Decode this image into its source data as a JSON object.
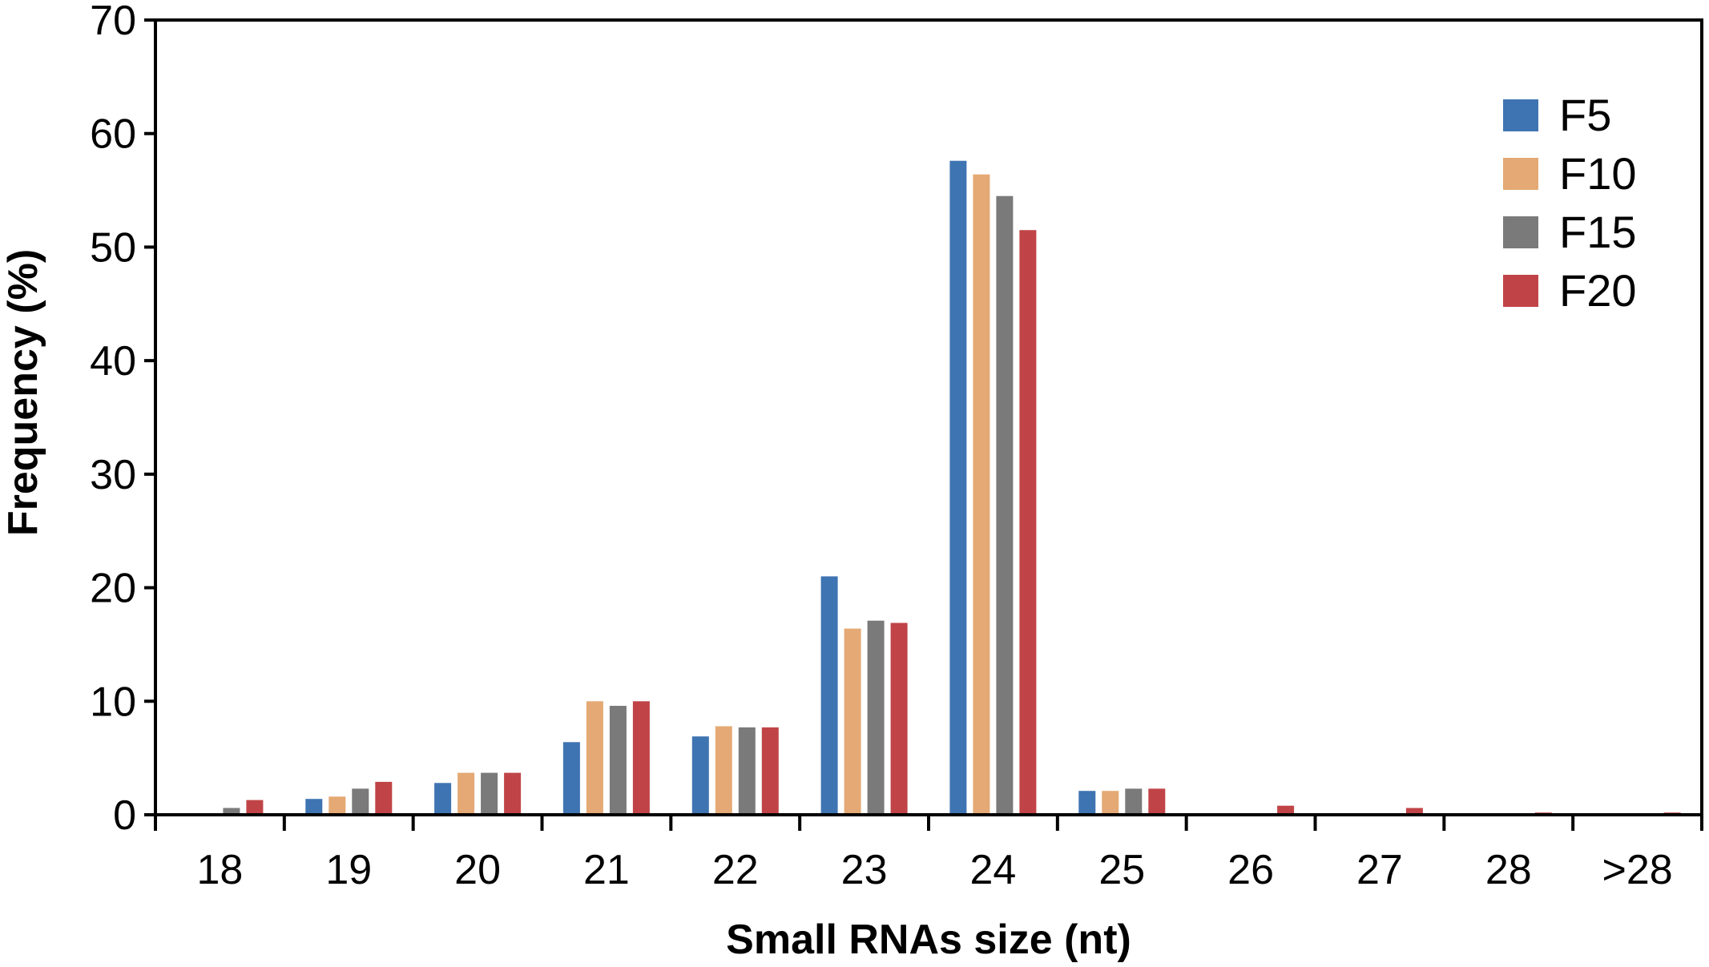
{
  "chart_data": {
    "type": "bar",
    "title": "",
    "xlabel": "Small RNAs size (nt)",
    "ylabel": "Frequency (%)",
    "ylim": [
      0,
      70
    ],
    "yticks": [
      "0",
      "10",
      "20",
      "30",
      "40",
      "50",
      "60",
      "70"
    ],
    "grid": false,
    "legend_position": "top-right",
    "categories": [
      "18",
      "19",
      "20",
      "21",
      "22",
      "23",
      "24",
      "25",
      "26",
      "27",
      "28",
      ">28"
    ],
    "series": [
      {
        "name": "F5",
        "color": "#3f74b2",
        "values": [
          0.1,
          1.4,
          2.8,
          6.4,
          6.9,
          21.0,
          57.6,
          2.1,
          0.05,
          0.05,
          0.05,
          0.05
        ]
      },
      {
        "name": "F10",
        "color": "#e4a974",
        "values": [
          0.1,
          1.6,
          3.7,
          10.0,
          7.8,
          16.4,
          56.4,
          2.1,
          0.05,
          0.05,
          0.05,
          0.05
        ]
      },
      {
        "name": "F15",
        "color": "#7a7a7a",
        "values": [
          0.6,
          2.3,
          3.7,
          9.6,
          7.7,
          17.1,
          54.5,
          2.3,
          0.1,
          0.1,
          0.1,
          0.1
        ]
      },
      {
        "name": "F20",
        "color": "#c04447",
        "values": [
          1.3,
          2.9,
          3.7,
          10.0,
          7.7,
          16.9,
          51.5,
          2.3,
          0.8,
          0.6,
          0.2,
          0.2
        ]
      }
    ]
  }
}
